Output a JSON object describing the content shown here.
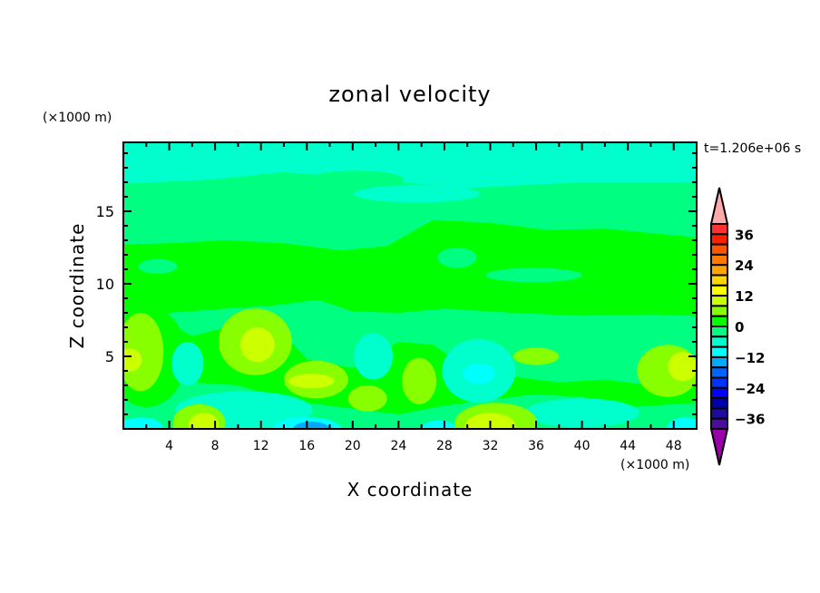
{
  "chart_data": {
    "type": "heatmap",
    "subtype": "filled-contour",
    "title": "zonal velocity",
    "xlabel": "X coordinate",
    "ylabel": "Z coordinate",
    "x_unit": "(×1000 m)",
    "y_unit": "(×1000 m)",
    "time_label": "t=1.206e+06 s",
    "xlim": [
      0,
      50
    ],
    "ylim": [
      0,
      19.75
    ],
    "xticks": [
      4,
      8,
      12,
      16,
      20,
      24,
      28,
      32,
      36,
      40,
      44,
      48
    ],
    "yticks": [
      5,
      10,
      15
    ],
    "colorbar": {
      "levels": [
        -40,
        -36,
        -32,
        -28,
        -24,
        -20,
        -16,
        -12,
        -8,
        -4,
        0,
        4,
        8,
        12,
        16,
        20,
        24,
        28,
        32,
        36,
        40
      ],
      "colors": [
        "#4b0aa0",
        "#1e0aa0",
        "#0000aa",
        "#0000ff",
        "#0033ff",
        "#0066ff",
        "#00aaff",
        "#00ffff",
        "#00ffcc",
        "#00ff80",
        "#00ff00",
        "#88ff00",
        "#ccff00",
        "#ffff00",
        "#ffd700",
        "#ffa500",
        "#ff7a00",
        "#ff5500",
        "#ff2000",
        "#ff3030"
      ],
      "under_color": "#9900aa",
      "over_color": "#ffaaaa",
      "tick_labels": [
        36,
        24,
        12,
        0,
        -12,
        -24,
        -36
      ]
    },
    "base_value": -6,
    "regions": [
      {
        "poly": [
          [
            0,
            0
          ],
          [
            0,
            16.9
          ],
          [
            8,
            17.2
          ],
          [
            14,
            17.7
          ],
          [
            20,
            17.3
          ],
          [
            30,
            16.6
          ],
          [
            40,
            17.0
          ],
          [
            50,
            17.0
          ],
          [
            50,
            0
          ]
        ],
        "value": -2
      },
      {
        "ellipse": [
          20.3,
          17.2,
          4.2,
          0.6
        ],
        "value": -2
      },
      {
        "ellipse": [
          25.6,
          16.2,
          5.5,
          0.6
        ],
        "value": -6
      },
      {
        "poly": [
          [
            0,
            7.9
          ],
          [
            0,
            12.7
          ],
          [
            4,
            12.8
          ],
          [
            9,
            13.0
          ],
          [
            14,
            12.8
          ],
          [
            19,
            12.3
          ],
          [
            23,
            12.6
          ],
          [
            27,
            14.4
          ],
          [
            32,
            14.2
          ],
          [
            37,
            13.7
          ],
          [
            42,
            13.8
          ],
          [
            50,
            13.2
          ],
          [
            50,
            7.8
          ],
          [
            46,
            7.9
          ],
          [
            40,
            7.8
          ],
          [
            34,
            8.0
          ],
          [
            28,
            8.3
          ],
          [
            24,
            8.0
          ],
          [
            20,
            8.1
          ],
          [
            17,
            8.9
          ],
          [
            13,
            8.5
          ],
          [
            9,
            8.3
          ],
          [
            4,
            8.0
          ]
        ],
        "value": 2
      },
      {
        "ellipse": [
          3,
          11.2,
          1.7,
          0.5
        ],
        "value": -2
      },
      {
        "ellipse": [
          29.1,
          11.8,
          1.7,
          0.7
        ],
        "value": -2
      },
      {
        "ellipse": [
          35.8,
          10.6,
          4.2,
          0.5
        ],
        "value": -2
      },
      {
        "poly": [
          [
            0,
            1.8
          ],
          [
            0,
            3.5
          ],
          [
            6,
            3.2
          ],
          [
            10,
            3.0
          ],
          [
            14,
            2.0
          ],
          [
            20,
            1.4
          ],
          [
            24,
            1.0
          ],
          [
            28,
            1.6
          ],
          [
            32,
            2.0
          ],
          [
            36,
            2.4
          ],
          [
            40,
            2.2
          ],
          [
            44,
            1.5
          ],
          [
            50,
            1.8
          ],
          [
            50,
            3.6
          ],
          [
            46,
            3.0
          ],
          [
            42,
            3.4
          ],
          [
            38,
            3.2
          ],
          [
            34,
            3.6
          ],
          [
            30,
            4.2
          ],
          [
            27,
            5.8
          ],
          [
            24,
            6.0
          ],
          [
            20,
            4.2
          ],
          [
            16,
            4.8
          ],
          [
            13,
            7.4
          ],
          [
            9,
            7.0
          ],
          [
            6,
            6.4
          ],
          [
            3,
            7.6
          ],
          [
            0,
            7.2
          ]
        ],
        "value": 2
      },
      {
        "ellipse": [
          2,
          5,
          3.5,
          3.5
        ],
        "value": 2
      },
      {
        "ellipse": [
          1.5,
          5.3,
          2,
          2.7
        ],
        "value": 6
      },
      {
        "ellipse": [
          0.6,
          4.75,
          1,
          0.8
        ],
        "value": 10
      },
      {
        "ellipse": [
          5.6,
          4.5,
          1.4,
          1.5
        ],
        "value": -6
      },
      {
        "ellipse": [
          11.5,
          6,
          3.2,
          2.3
        ],
        "value": 6
      },
      {
        "ellipse": [
          11.7,
          5.8,
          1.5,
          1.2
        ],
        "value": 10
      },
      {
        "ellipse": [
          16.8,
          3.4,
          2.8,
          1.3
        ],
        "value": 6
      },
      {
        "ellipse": [
          16.4,
          3.3,
          2,
          0.5
        ],
        "value": 10
      },
      {
        "ellipse": [
          21.8,
          5,
          1.7,
          1.6
        ],
        "value": -6
      },
      {
        "ellipse": [
          21.3,
          2.1,
          1.7,
          0.9
        ],
        "value": 6
      },
      {
        "ellipse": [
          25.8,
          3.3,
          1.5,
          1.6
        ],
        "value": 6
      },
      {
        "ellipse": [
          31,
          4,
          3.2,
          2.2
        ],
        "value": -6
      },
      {
        "ellipse": [
          31,
          3.8,
          1.4,
          0.7
        ],
        "value": -10
      },
      {
        "ellipse": [
          36,
          5,
          2,
          0.6
        ],
        "value": 6
      },
      {
        "ellipse": [
          47.5,
          4,
          2.7,
          1.8
        ],
        "value": 6
      },
      {
        "ellipse": [
          48.8,
          4.3,
          1.3,
          1
        ],
        "value": 10
      },
      {
        "ellipse": [
          10.5,
          1.3,
          6,
          1.3
        ],
        "value": -6
      },
      {
        "ellipse": [
          40,
          1.1,
          5,
          1.0
        ],
        "value": -6
      },
      {
        "ellipse": [
          6.6,
          0.4,
          2.3,
          1.3
        ],
        "value": 6
      },
      {
        "ellipse": [
          7,
          0.3,
          1.3,
          0.8
        ],
        "value": 10
      },
      {
        "ellipse": [
          32.5,
          0.4,
          3.6,
          1.4
        ],
        "value": 6
      },
      {
        "ellipse": [
          32,
          0.2,
          2.2,
          0.9
        ],
        "value": 10
      },
      {
        "ellipse": [
          1.5,
          0,
          2,
          0.8
        ],
        "value": -10
      },
      {
        "ellipse": [
          16,
          0,
          3,
          0.8
        ],
        "value": -10
      },
      {
        "ellipse": [
          27.5,
          0,
          1.5,
          0.6
        ],
        "value": -10
      },
      {
        "ellipse": [
          49,
          0,
          1.6,
          0.8
        ],
        "value": -10
      },
      {
        "ellipse": [
          16.4,
          0,
          1.6,
          0.5
        ],
        "value": -14
      }
    ]
  }
}
